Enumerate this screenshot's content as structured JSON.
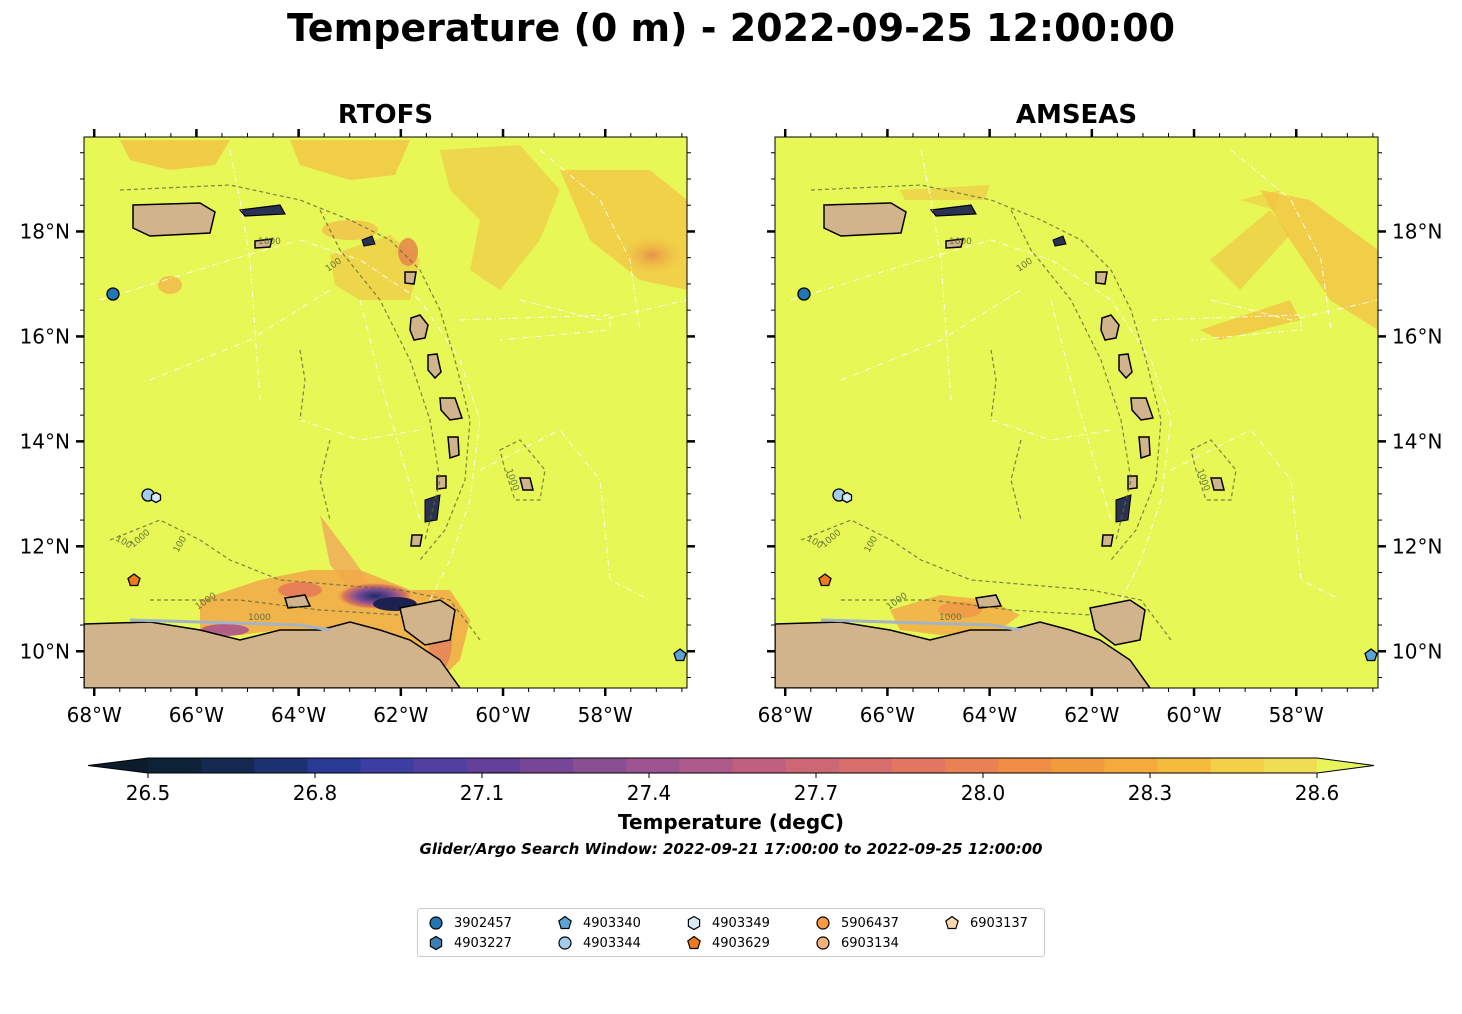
{
  "title": "Temperature (0 m) - 2022-09-25 12:00:00",
  "panels": [
    {
      "title": "RTOFS"
    },
    {
      "title": "AMSEAS"
    }
  ],
  "x_ticks": [
    "68°W",
    "66°W",
    "64°W",
    "62°W",
    "60°W",
    "58°W"
  ],
  "y_ticks": [
    "18°N",
    "16°N",
    "14°N",
    "12°N",
    "10°N"
  ],
  "contour_label": "1000",
  "contour_label_small": "100",
  "colorbar": {
    "label": "Temperature (degC)",
    "ticks": [
      "26.5",
      "26.8",
      "27.1",
      "27.4",
      "27.7",
      "28.0",
      "28.3",
      "28.6"
    ],
    "colors": [
      "#0d2137",
      "#13294f",
      "#1c3172",
      "#283a93",
      "#3d3ea3",
      "#51409f",
      "#633f9a",
      "#774697",
      "#8a4f93",
      "#9c5590",
      "#ae5a8b",
      "#bf6081",
      "#cd6776",
      "#d86e6b",
      "#e27660",
      "#ea8152",
      "#ef8e44",
      "#f29b3c",
      "#f4ab3b",
      "#f5bb3d",
      "#f4cf48",
      "#eedd52"
    ],
    "extend_low": "#0d1c2c",
    "extend_high": "#e8f55a"
  },
  "caption": "Glider/Argo Search Window: 2022-09-21 17:00:00 to 2022-09-25 12:00:00",
  "colors": {
    "ocean": "#e6f756",
    "land": "#d2b48c",
    "eez_lines": "#ffffff",
    "bathymetry_contours": "#5a6b3a"
  },
  "chart_data": {
    "type": "map-contourf",
    "variable": "Temperature (0 m)",
    "units": "degC",
    "time": "2022-09-25 12:00:00",
    "lon_range": [
      -68.2,
      -56.4
    ],
    "lat_range": [
      9.3,
      19.8
    ],
    "colorbar_range": [
      26.5,
      28.6
    ],
    "models": [
      "RTOFS",
      "AMSEAS"
    ],
    "legend": [
      {
        "id": "3902457",
        "marker": "circle",
        "color": "#1f77b4",
        "lon": -67.6,
        "lat": 16.8
      },
      {
        "id": "4903227",
        "marker": "hexagon",
        "color": "#3a7fb8"
      },
      {
        "id": "4903340",
        "marker": "pentagon",
        "color": "#5ba3d6",
        "lon": -56.6,
        "lat": 9.9
      },
      {
        "id": "4903344",
        "marker": "circle",
        "color": "#a3cdef",
        "lon": -66.95,
        "lat": 13.0
      },
      {
        "id": "4903349",
        "marker": "hexagon",
        "color": "#d7eaf8",
        "lon": -66.8,
        "lat": 12.95
      },
      {
        "id": "4903629",
        "marker": "pentagon",
        "color": "#f07a1a",
        "lon": -67.2,
        "lat": 11.35
      },
      {
        "id": "5906437",
        "marker": "circle",
        "color": "#fb9a40"
      },
      {
        "id": "6903134",
        "marker": "circle",
        "color": "#f7b27a"
      },
      {
        "id": "6903137",
        "marker": "pentagon",
        "color": "#fcd4ad"
      }
    ]
  }
}
